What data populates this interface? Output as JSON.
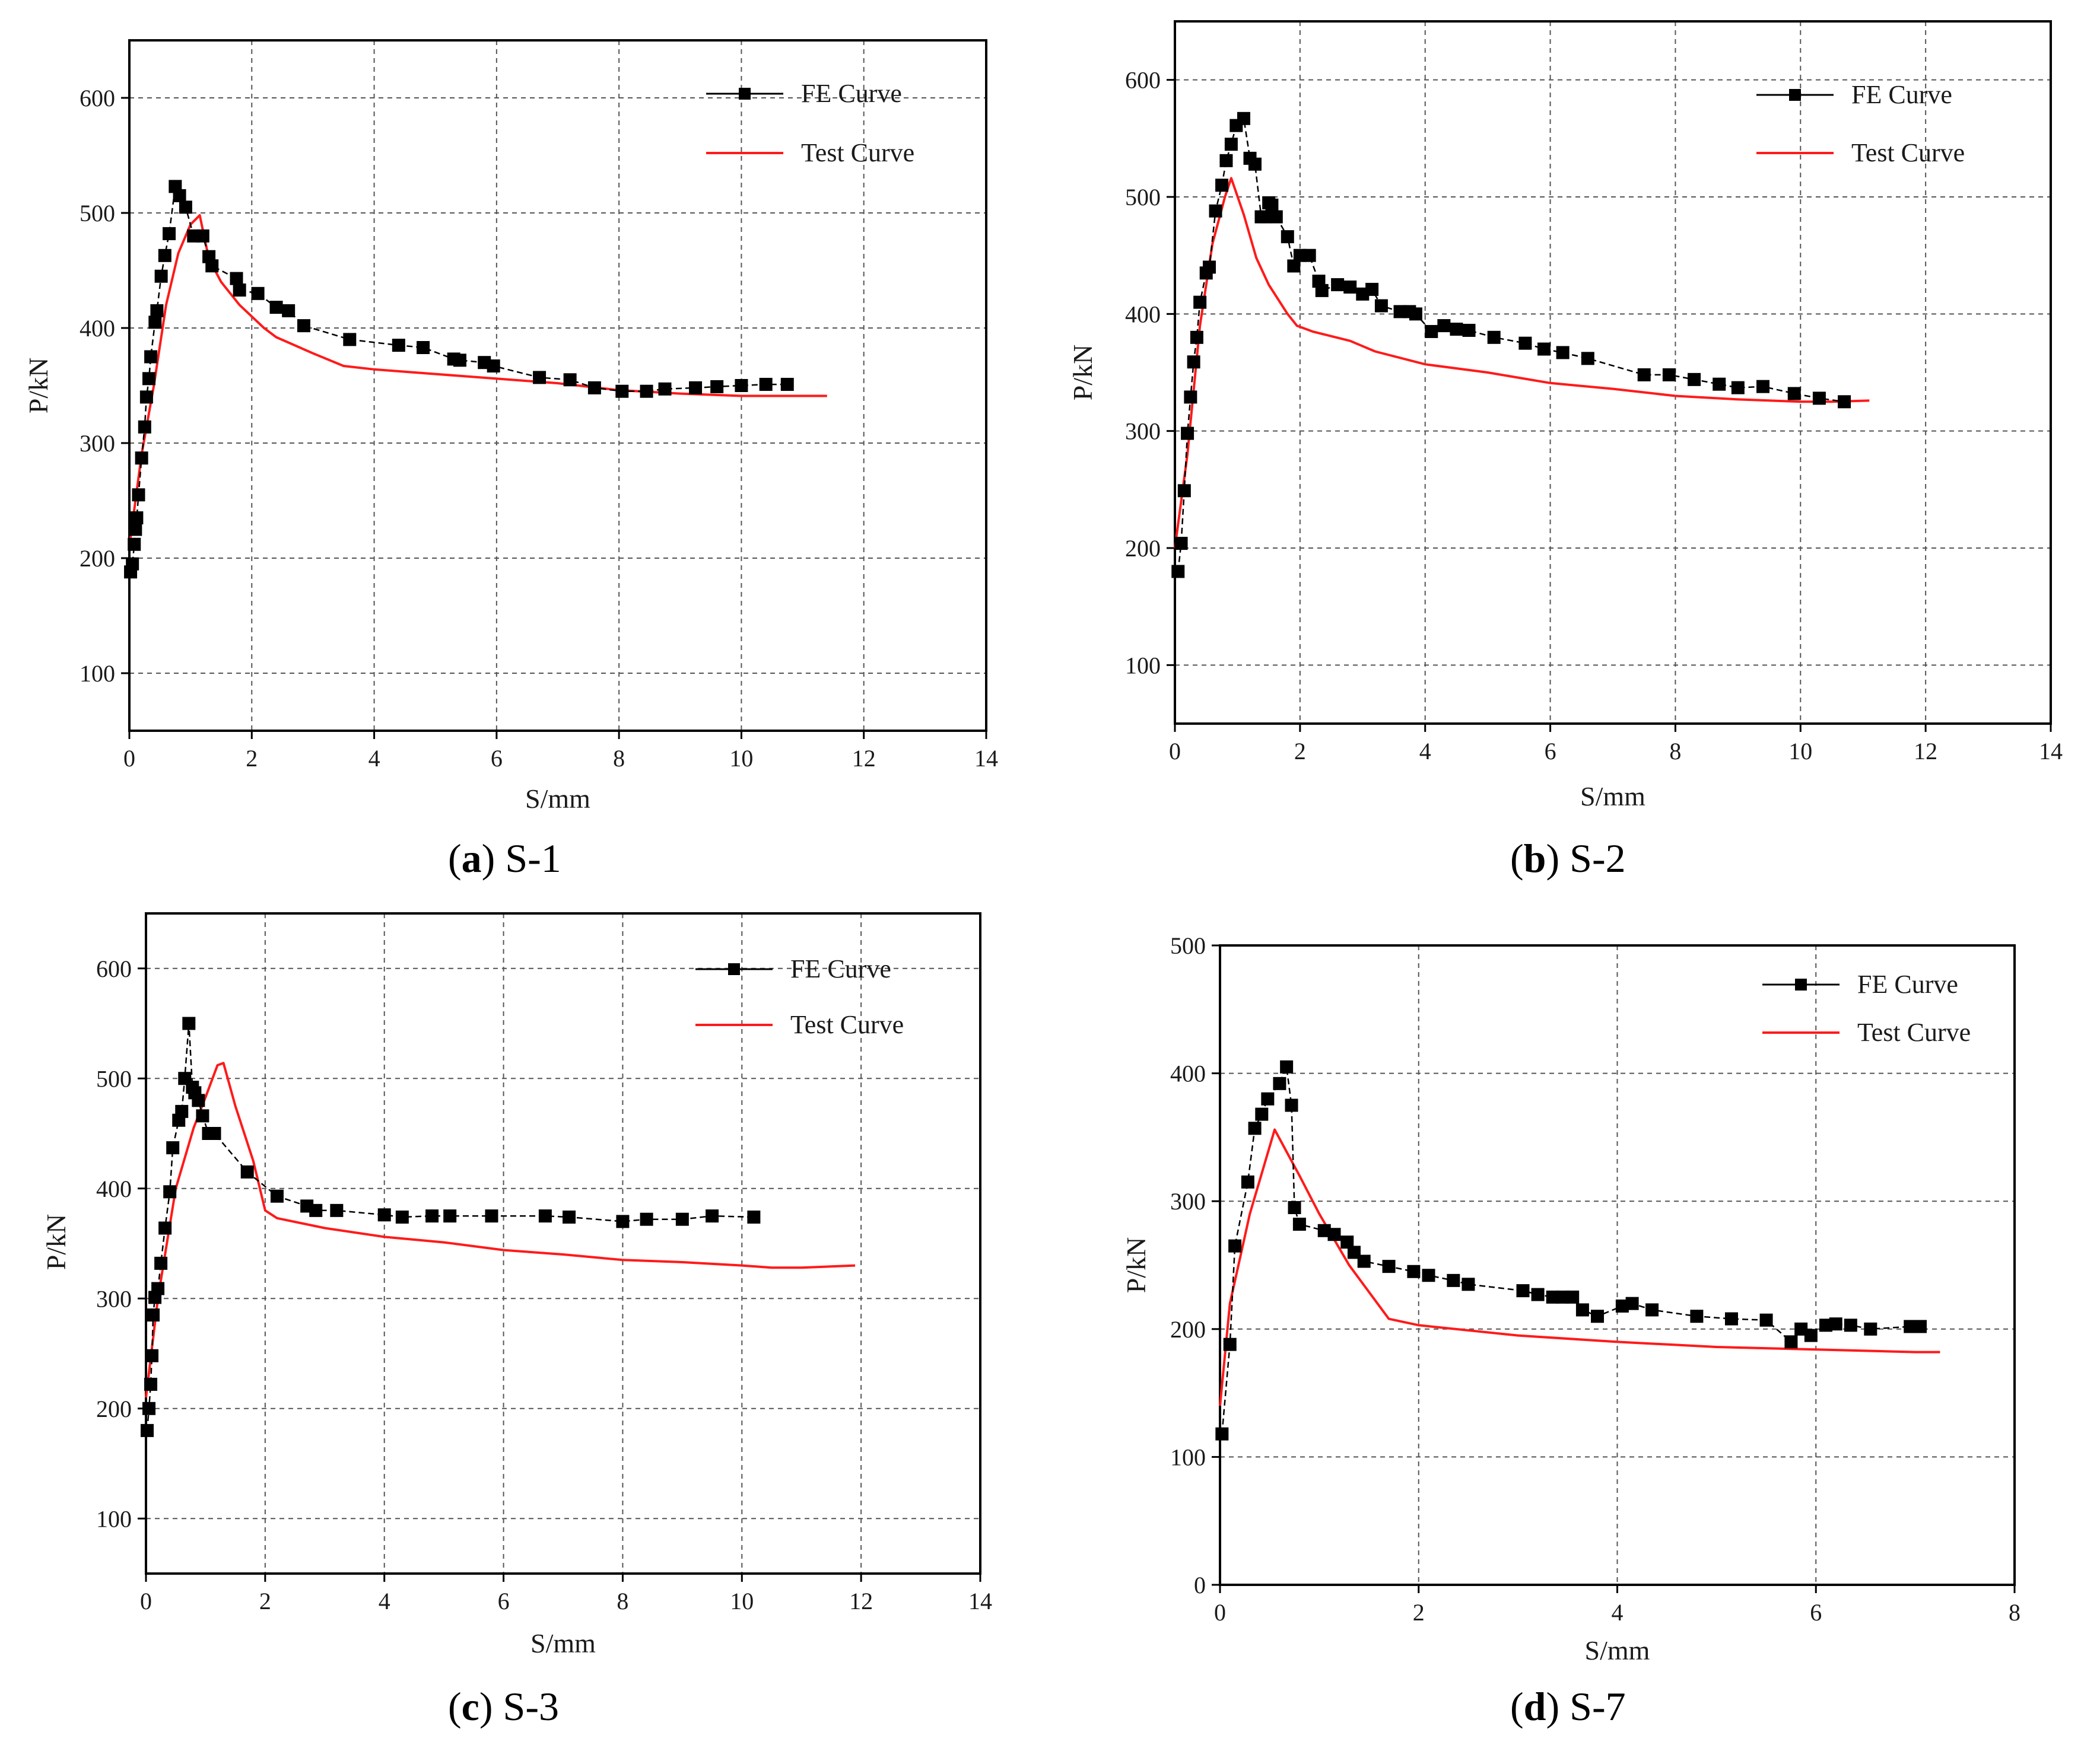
{
  "figure": {
    "captions": [
      {
        "label": "a",
        "title": "S-1"
      },
      {
        "label": "b",
        "title": "S-2"
      },
      {
        "label": "c",
        "title": "S-3"
      },
      {
        "label": "d",
        "title": "S-7"
      }
    ]
  },
  "colors": {
    "fe": "#000000",
    "test": "#ff1a1a",
    "grid": "#555555",
    "axis": "#000000"
  },
  "chart_data": [
    {
      "type": "line",
      "title": "S-1",
      "xlabel": "S/mm",
      "ylabel": "P/kN",
      "xlim": [
        0,
        14
      ],
      "ylim": [
        50,
        650
      ],
      "xticks": [
        0,
        2,
        4,
        6,
        8,
        10,
        12,
        14
      ],
      "yticks": [
        100,
        200,
        300,
        400,
        500,
        600
      ],
      "grid": true,
      "legend_position": "top-right",
      "series": [
        {
          "name": "FE Curve",
          "marker": "square",
          "x": [
            0.02,
            0.05,
            0.08,
            0.1,
            0.12,
            0.15,
            0.2,
            0.25,
            0.28,
            0.32,
            0.35,
            0.42,
            0.45,
            0.52,
            0.58,
            0.65,
            0.75,
            0.82,
            0.92,
            1.05,
            1.2,
            1.3,
            1.35,
            1.75,
            1.8,
            2.1,
            2.4,
            2.6,
            2.85,
            3.6,
            4.4,
            4.8,
            5.3,
            5.4,
            5.8,
            5.95,
            6.7,
            7.2,
            7.6,
            8.05,
            8.45,
            8.75,
            9.25,
            9.6,
            10.0,
            10.4,
            10.75
          ],
          "y": [
            188,
            195,
            212,
            225,
            235,
            255,
            287,
            314,
            340,
            356,
            375,
            405,
            415,
            445,
            463,
            482,
            523,
            515,
            505,
            480,
            480,
            462,
            454,
            443,
            433,
            430,
            418,
            415,
            402,
            390,
            385,
            383,
            373,
            372,
            370,
            367,
            357,
            355,
            348,
            345,
            345,
            347,
            348,
            349,
            350,
            351,
            351
          ]
        },
        {
          "name": "Test Curve",
          "x": [
            0.0,
            0.2,
            0.4,
            0.6,
            0.8,
            1.0,
            1.15,
            1.3,
            1.5,
            1.8,
            2.2,
            2.4,
            3.0,
            3.5,
            4.0,
            5.0,
            6.0,
            7.0,
            8.0,
            9.0,
            10.0,
            10.5,
            11.4
          ],
          "y": [
            210,
            290,
            350,
            420,
            465,
            490,
            498,
            460,
            440,
            420,
            400,
            392,
            378,
            367,
            364,
            360,
            356,
            352,
            346,
            343,
            341,
            341,
            341
          ]
        }
      ]
    },
    {
      "type": "line",
      "title": "S-2",
      "xlabel": "S/mm",
      "ylabel": "P/kN",
      "xlim": [
        0,
        14
      ],
      "ylim": [
        50,
        650
      ],
      "xticks": [
        0,
        2,
        4,
        6,
        8,
        10,
        12,
        14
      ],
      "yticks": [
        100,
        200,
        300,
        400,
        500,
        600
      ],
      "grid": true,
      "legend_position": "top-right",
      "series": [
        {
          "name": "FE Curve",
          "marker": "square",
          "x": [
            0.05,
            0.1,
            0.15,
            0.2,
            0.25,
            0.3,
            0.35,
            0.4,
            0.5,
            0.55,
            0.65,
            0.75,
            0.82,
            0.9,
            0.98,
            1.1,
            1.2,
            1.28,
            1.38,
            1.45,
            1.5,
            1.55,
            1.62,
            1.8,
            1.9,
            2.0,
            2.15,
            2.3,
            2.35,
            2.6,
            2.8,
            3.0,
            3.15,
            3.3,
            3.6,
            3.75,
            3.85,
            4.1,
            4.3,
            4.5,
            4.7,
            5.1,
            5.6,
            5.9,
            6.2,
            6.6,
            7.5,
            7.9,
            8.3,
            8.7,
            9.0,
            9.4,
            9.9,
            10.3,
            10.7
          ],
          "y": [
            180,
            204,
            249,
            298,
            329,
            359,
            380,
            410,
            435,
            440,
            488,
            510,
            531,
            545,
            561,
            567,
            533,
            528,
            483,
            483,
            495,
            493,
            483,
            466,
            441,
            450,
            450,
            428,
            420,
            425,
            423,
            417,
            421,
            407,
            402,
            402,
            400,
            385,
            390,
            387,
            386,
            380,
            375,
            370,
            367,
            362,
            348,
            348,
            344,
            340,
            337,
            338,
            332,
            328,
            325
          ]
        },
        {
          "name": "Test Curve",
          "x": [
            0.0,
            0.2,
            0.4,
            0.6,
            0.8,
            0.9,
            1.1,
            1.3,
            1.5,
            1.8,
            1.95,
            2.2,
            2.8,
            3.2,
            4.0,
            5.0,
            6.0,
            7.0,
            8.0,
            9.0,
            10.0,
            10.5,
            11.1
          ],
          "y": [
            200,
            280,
            390,
            460,
            500,
            516,
            485,
            448,
            425,
            400,
            390,
            385,
            377,
            368,
            357,
            350,
            341,
            336,
            330,
            327,
            325,
            325,
            326
          ]
        }
      ]
    },
    {
      "type": "line",
      "title": "S-3",
      "xlabel": "S/mm",
      "ylabel": "P/kN",
      "xlim": [
        0,
        14
      ],
      "ylim": [
        50,
        650
      ],
      "xticks": [
        0,
        2,
        4,
        6,
        8,
        10,
        12,
        14
      ],
      "yticks": [
        100,
        200,
        300,
        400,
        500,
        600
      ],
      "grid": true,
      "legend_position": "top-right",
      "series": [
        {
          "name": "FE Curve",
          "marker": "square",
          "x": [
            0.02,
            0.05,
            0.08,
            0.1,
            0.12,
            0.15,
            0.2,
            0.25,
            0.32,
            0.4,
            0.45,
            0.55,
            0.6,
            0.65,
            0.72,
            0.78,
            0.82,
            0.88,
            0.95,
            1.05,
            1.15,
            1.7,
            2.2,
            2.7,
            2.85,
            3.2,
            4.0,
            4.3,
            4.8,
            5.1,
            5.8,
            6.7,
            7.1,
            8.0,
            8.4,
            9.0,
            9.5,
            10.2
          ],
          "y": [
            180,
            200,
            222,
            248,
            285,
            301,
            309,
            332,
            364,
            397,
            437,
            462,
            470,
            500,
            550,
            492,
            487,
            480,
            466,
            450,
            450,
            415,
            393,
            384,
            380,
            380,
            376,
            374,
            375,
            375,
            375,
            375,
            374,
            370,
            372,
            372,
            375,
            374
          ]
        },
        {
          "name": "Test Curve",
          "x": [
            0.0,
            0.2,
            0.5,
            0.8,
            1.0,
            1.2,
            1.3,
            1.5,
            1.8,
            2.0,
            2.2,
            3.0,
            4.0,
            5.0,
            6.0,
            7.0,
            8.0,
            9.0,
            10.0,
            10.5,
            11.0,
            11.9
          ],
          "y": [
            210,
            300,
            400,
            455,
            483,
            512,
            514,
            475,
            425,
            380,
            373,
            364,
            356,
            351,
            344,
            340,
            335,
            333,
            330,
            328,
            328,
            330
          ]
        }
      ]
    },
    {
      "type": "line",
      "title": "S-7",
      "xlabel": "S/mm",
      "ylabel": "P/kN",
      "xlim": [
        0,
        8
      ],
      "ylim": [
        0,
        500
      ],
      "xticks": [
        0,
        2,
        4,
        6,
        8
      ],
      "yticks": [
        0,
        100,
        200,
        300,
        400,
        500
      ],
      "grid": true,
      "legend_position": "top-right",
      "series": [
        {
          "name": "FE Curve",
          "marker": "square",
          "x": [
            0.02,
            0.1,
            0.15,
            0.28,
            0.35,
            0.42,
            0.48,
            0.6,
            0.67,
            0.72,
            0.75,
            0.8,
            1.05,
            1.15,
            1.28,
            1.35,
            1.45,
            1.7,
            1.95,
            2.1,
            2.35,
            2.5,
            3.05,
            3.2,
            3.35,
            3.45,
            3.55,
            3.65,
            3.8,
            4.05,
            4.15,
            4.35,
            4.8,
            5.15,
            5.5,
            5.75,
            5.85,
            5.95,
            6.1,
            6.2,
            6.35,
            6.55,
            6.95,
            7.05
          ],
          "y": [
            118,
            188,
            265,
            315,
            357,
            368,
            380,
            392,
            405,
            375,
            295,
            282,
            277,
            274,
            268,
            260,
            253,
            249,
            245,
            242,
            238,
            235,
            230,
            227,
            225,
            225,
            225,
            215,
            210,
            218,
            220,
            215,
            210,
            208,
            207,
            190,
            200,
            195,
            203,
            204,
            203,
            200,
            202,
            202
          ]
        },
        {
          "name": "Test Curve",
          "x": [
            0.0,
            0.1,
            0.3,
            0.55,
            0.8,
            1.0,
            1.3,
            1.7,
            2.0,
            3.0,
            4.0,
            5.0,
            6.0,
            7.0,
            7.25
          ],
          "y": [
            140,
            220,
            290,
            356,
            320,
            290,
            250,
            208,
            203,
            195,
            190,
            186,
            184,
            182,
            182
          ]
        }
      ]
    }
  ]
}
